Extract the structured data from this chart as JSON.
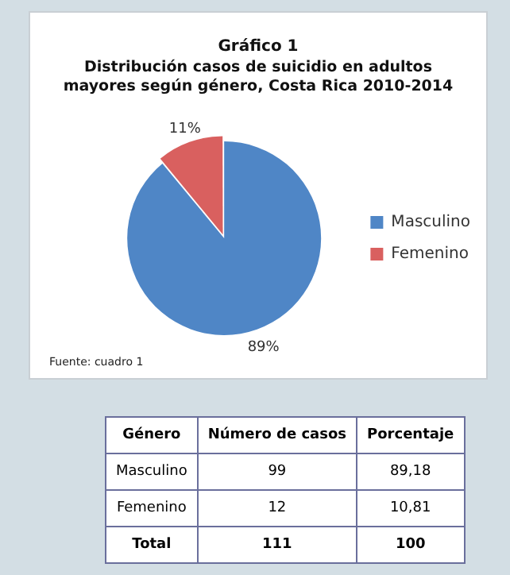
{
  "chart_data": {
    "type": "pie",
    "title": "Gráfico 1",
    "subtitle": "Distribución casos de suicidio en adultos mayores según género, Costa Rica 2010-2014",
    "categories": [
      "Masculino",
      "Femenino"
    ],
    "values": [
      89,
      11
    ],
    "colors": [
      "#4f86c6",
      "#d9605f"
    ],
    "value_labels": [
      "89%",
      "11%"
    ],
    "legend": "right",
    "annotations": [
      "Fuente: cuadro 1",
      "Género",
      "Número de casos",
      "Porcentaje",
      "Masculino",
      "99",
      "89,18",
      "Femenino",
      "12",
      "10,81",
      "Total",
      "111",
      "100"
    ]
  }
}
